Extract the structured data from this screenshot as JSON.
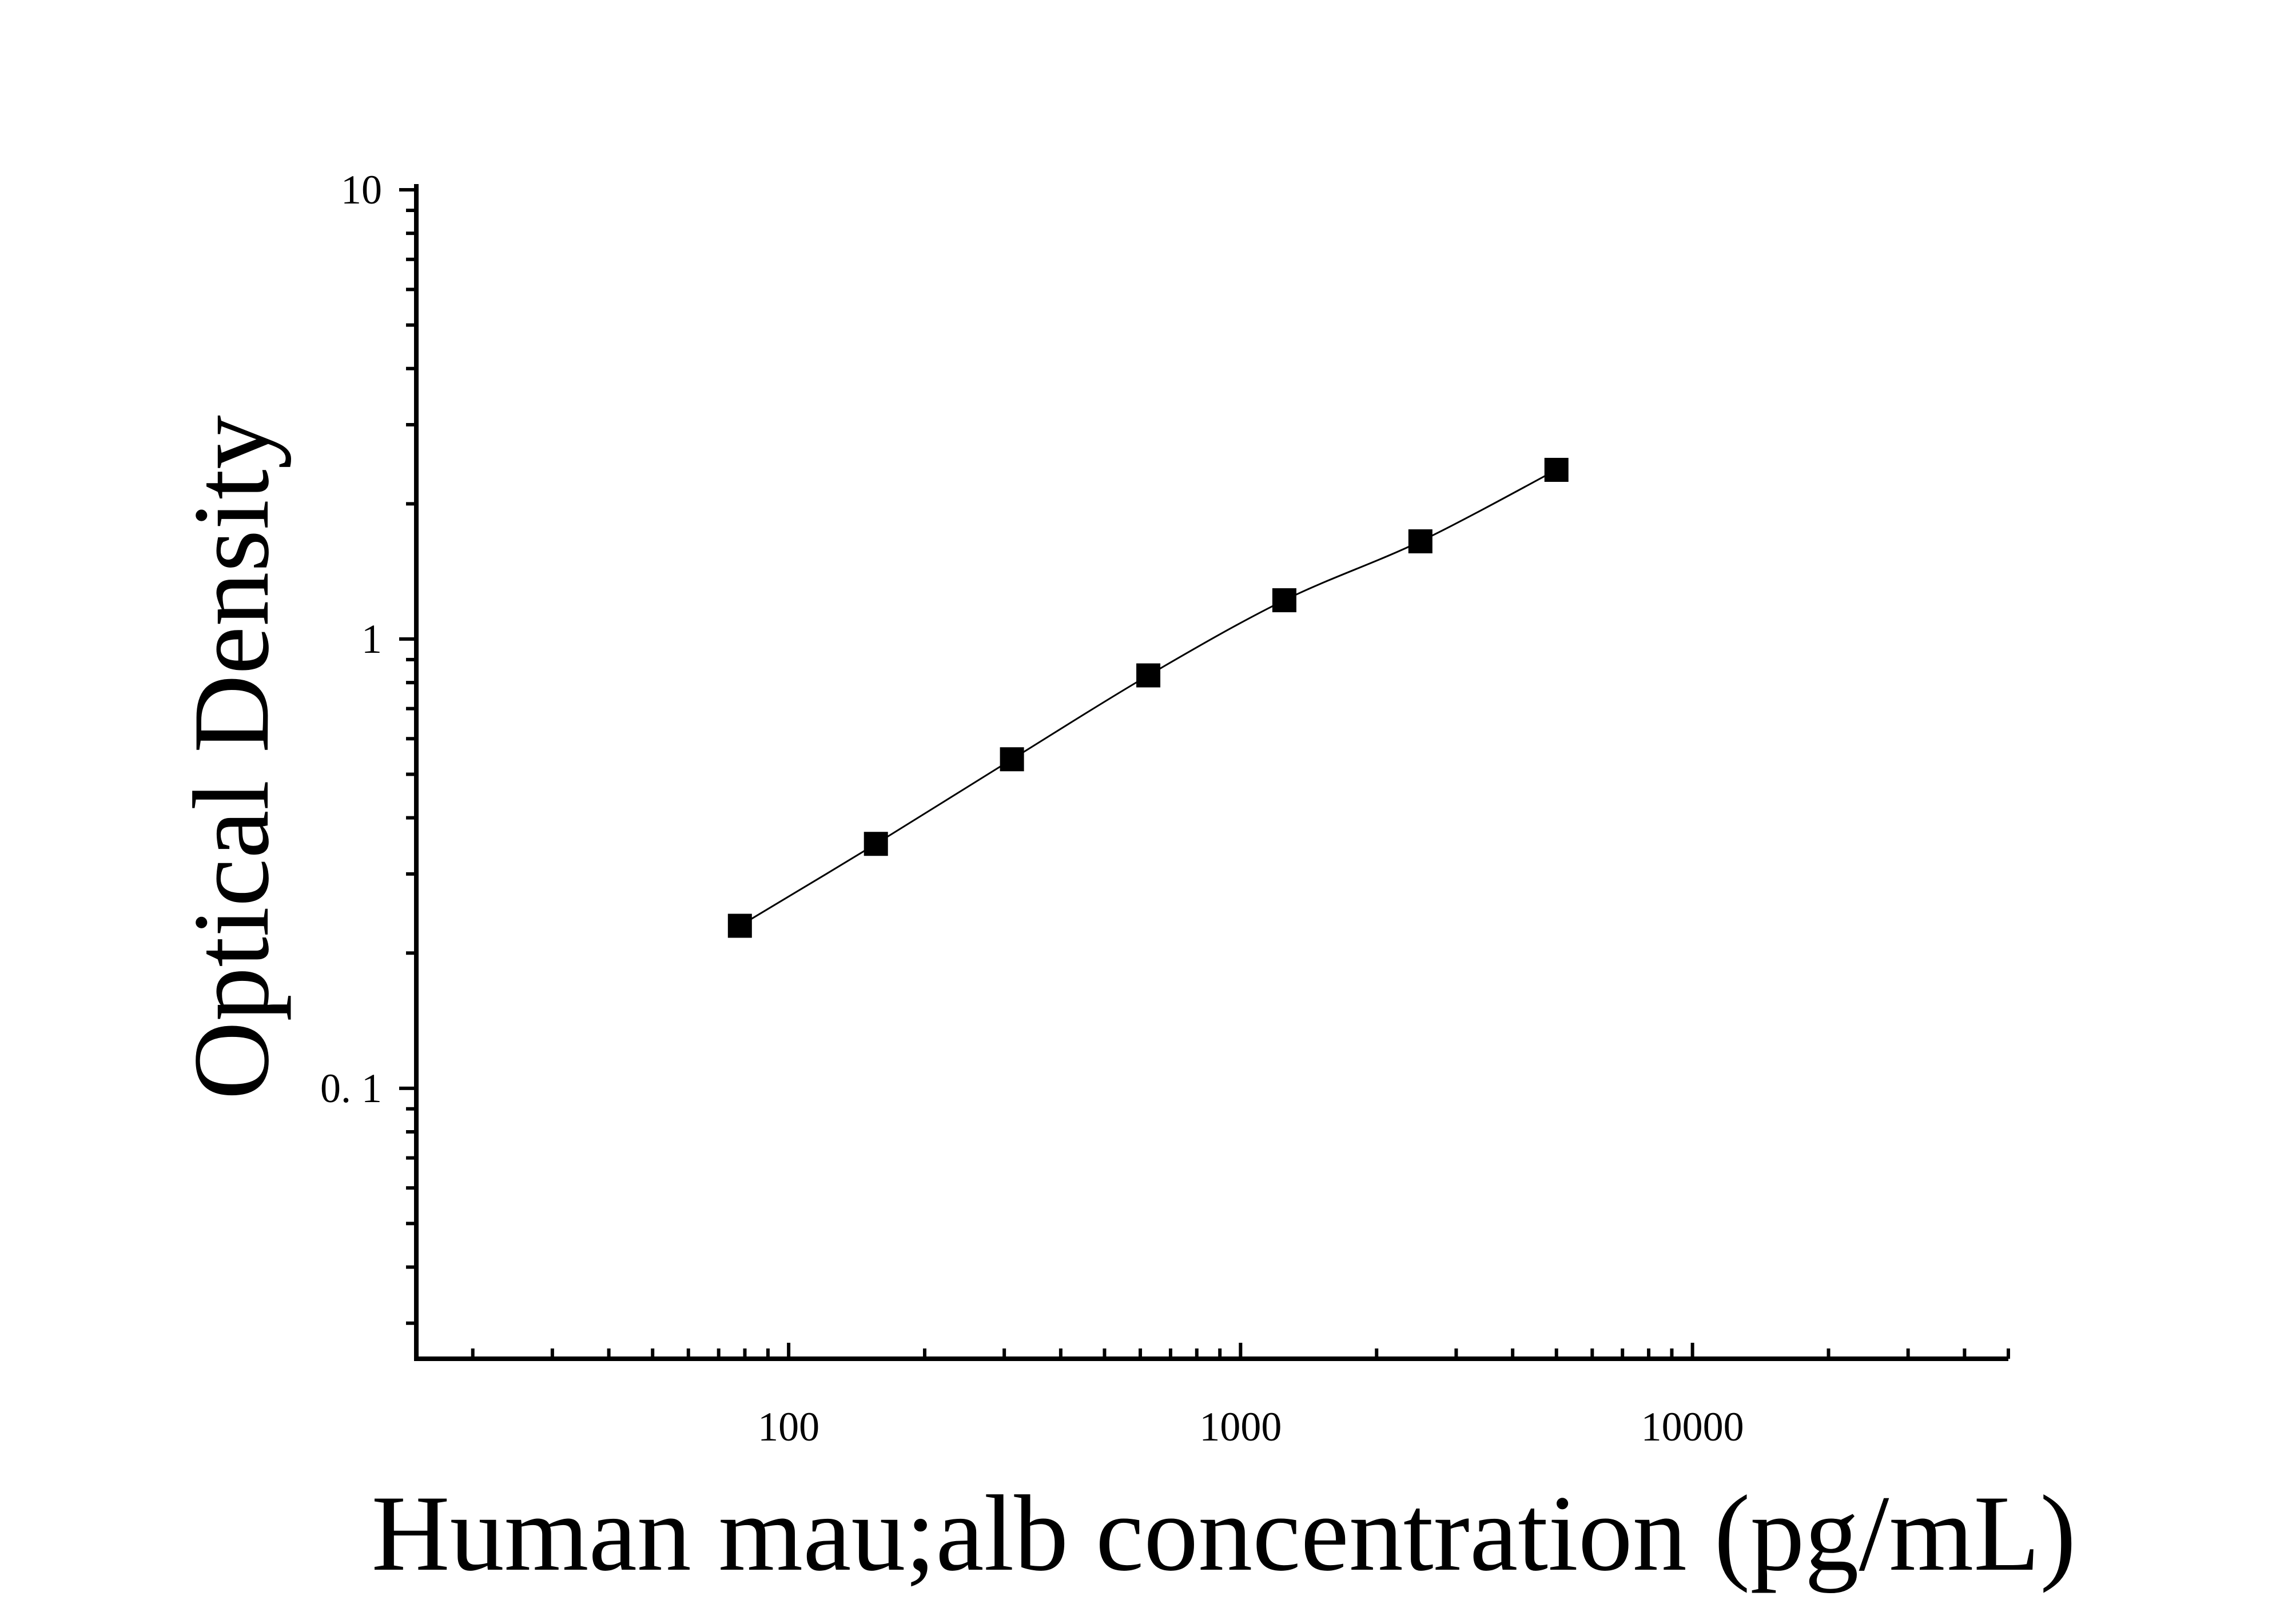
{
  "chart_data": {
    "type": "scatter",
    "title": "",
    "xlabel": "Human mau;alb concentration (pg/mL)",
    "ylabel": "Optical Density",
    "xscale": "log",
    "yscale": "log",
    "xlim": [
      15,
      50000
    ],
    "ylim": [
      0.025,
      10
    ],
    "x_tick_labels": [
      "100",
      "1000",
      "10000"
    ],
    "y_tick_labels": [
      "10",
      "1",
      "0. 1"
    ],
    "grid": false,
    "legend": "none",
    "marker": "square",
    "color": "#000000",
    "series": [
      {
        "x": [
          78,
          156,
          312,
          625,
          1250,
          2500,
          5000
        ],
        "y": [
          0.23,
          0.35,
          0.54,
          0.83,
          1.22,
          1.65,
          2.38
        ],
        "fit_curve": true
      }
    ]
  }
}
